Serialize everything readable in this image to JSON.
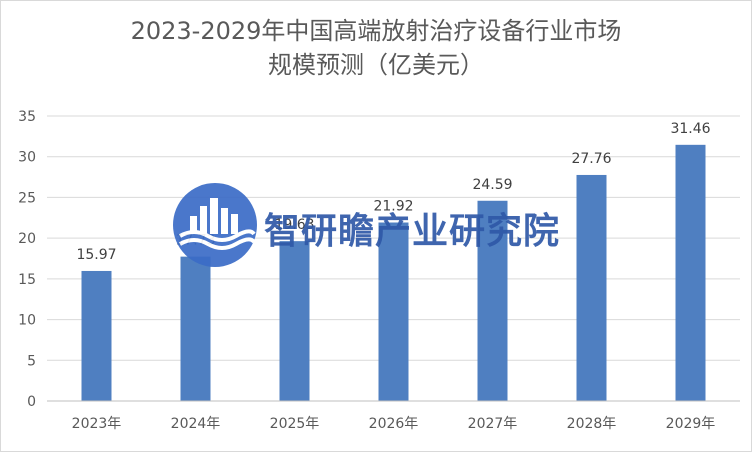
{
  "chart_data": {
    "type": "bar",
    "title_line1": "2023-2029年中国高端放射治疗设备行业市场",
    "title_line2": "规模预测（亿美元）",
    "categories": [
      "2023年",
      "2024年",
      "2025年",
      "2026年",
      "2027年",
      "2028年",
      "2029年"
    ],
    "values": [
      15.97,
      17.73,
      19.63,
      21.92,
      24.59,
      27.76,
      31.46
    ],
    "ylim": [
      0,
      35
    ],
    "yticks": [
      0,
      5,
      10,
      15,
      20,
      25,
      30,
      35
    ],
    "grid": true,
    "bar_color": "#4f7fc1"
  },
  "watermark": {
    "text": "智研瞻产业研究院",
    "color": "#2f59a8"
  }
}
